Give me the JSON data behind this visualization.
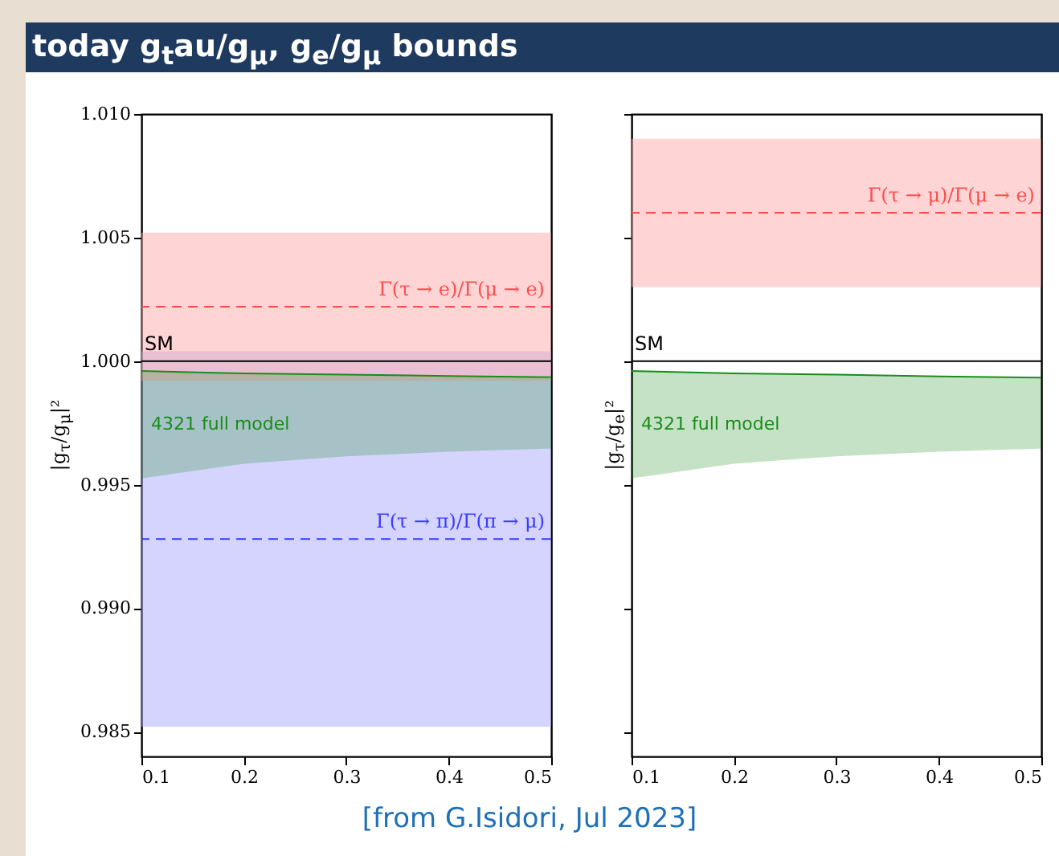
{
  "chart_data": [
    {
      "type": "line",
      "title": "today g$_{t}$au/g$_{μ}$, g$_{e}$/g$_{μ}$ bounds",
      "ylabel": "|g$_{τ}$/g$_{μ}$|²",
      "annotations": [
        "[from G.Isidori, Jul 2023]"
      ],
      "xlim": [
        0.1,
        0.5
      ],
      "xticks": [
        0.1,
        0.2,
        0.3,
        0.4,
        0.5
      ],
      "ylim": [
        0.984,
        1.01
      ],
      "yticks": [
        {
          "value": 0.985,
          "label": "0.985"
        },
        {
          "value": 0.99,
          "label": "0.990"
        },
        {
          "value": 0.995,
          "label": "0.995"
        },
        {
          "value": 1.0,
          "label": "1.000"
        },
        {
          "value": 1.005,
          "label": "1.005"
        },
        {
          "value": 1.01,
          "label": "1.010"
        }
      ],
      "grid": false,
      "bands": [
        {
          "axis": "y",
          "from": 0.9852,
          "to": 1.0004,
          "color": "#aaaaff"
        },
        {
          "axis": "y",
          "from": 0.9992,
          "to": 1.0052,
          "color": "#ffaaaa"
        }
      ],
      "ref_lines": [
        {
          "axis": "y",
          "value": 1.0,
          "label": "SM",
          "color": "#000000",
          "line_style": "solid"
        },
        {
          "axis": "y",
          "value": 1.0022,
          "label": "Γ(τ → e)/Γ(μ → e)",
          "color": "#ff4d4d",
          "line_style": "dashed"
        },
        {
          "axis": "y",
          "value": 0.9928,
          "label": "Γ(τ → π)/Γ(π → μ)",
          "color": "#3b3bff",
          "line_style": "dashed"
        }
      ],
      "series": [
        {
          "name": "4321 full model",
          "color": "#1a8c1a",
          "x": [
            0.1,
            0.2,
            0.3,
            0.4,
            0.5
          ],
          "values": [
            0.9996,
            0.9995,
            0.99945,
            0.9994,
            0.99935
          ],
          "lower": [
            0.99525,
            0.99585,
            0.99615,
            0.99633,
            0.99646
          ],
          "upper": [
            0.9996,
            0.9995,
            0.99945,
            0.9994,
            0.99935
          ]
        }
      ]
    },
    {
      "type": "line",
      "ylabel": "|g$_{τ}$/g$_{e}$|²",
      "tick_labels": "x",
      "xlim": [
        0.1,
        0.5
      ],
      "xticks": [
        0.1,
        0.2,
        0.3,
        0.4,
        0.5
      ],
      "ylim": [
        0.984,
        1.01
      ],
      "yticks": [
        0.985,
        0.99,
        0.995,
        1.0,
        1.005,
        1.01
      ],
      "grid": false,
      "bands": [
        {
          "axis": "y",
          "from": 1.003,
          "to": 1.009,
          "color": "#ffaaaa"
        }
      ],
      "ref_lines": [
        {
          "axis": "y",
          "value": 1.0,
          "label": "SM",
          "color": "#000000",
          "line_style": "solid"
        },
        {
          "axis": "y",
          "value": 1.006,
          "label": "Γ(τ → μ)/Γ(μ → e)",
          "color": "#ff4d4d",
          "line_style": "dashed"
        }
      ],
      "series": [
        {
          "name": "4321 full model",
          "color": "#1a8c1a",
          "x": [
            0.1,
            0.2,
            0.3,
            0.4,
            0.5
          ],
          "values": [
            0.9996,
            0.9995,
            0.99945,
            0.99938,
            0.99933
          ],
          "lower": [
            0.99525,
            0.99585,
            0.99615,
            0.99633,
            0.99646
          ],
          "upper": [
            0.9996,
            0.9995,
            0.99945,
            0.99938,
            0.99933
          ]
        }
      ]
    }
  ]
}
